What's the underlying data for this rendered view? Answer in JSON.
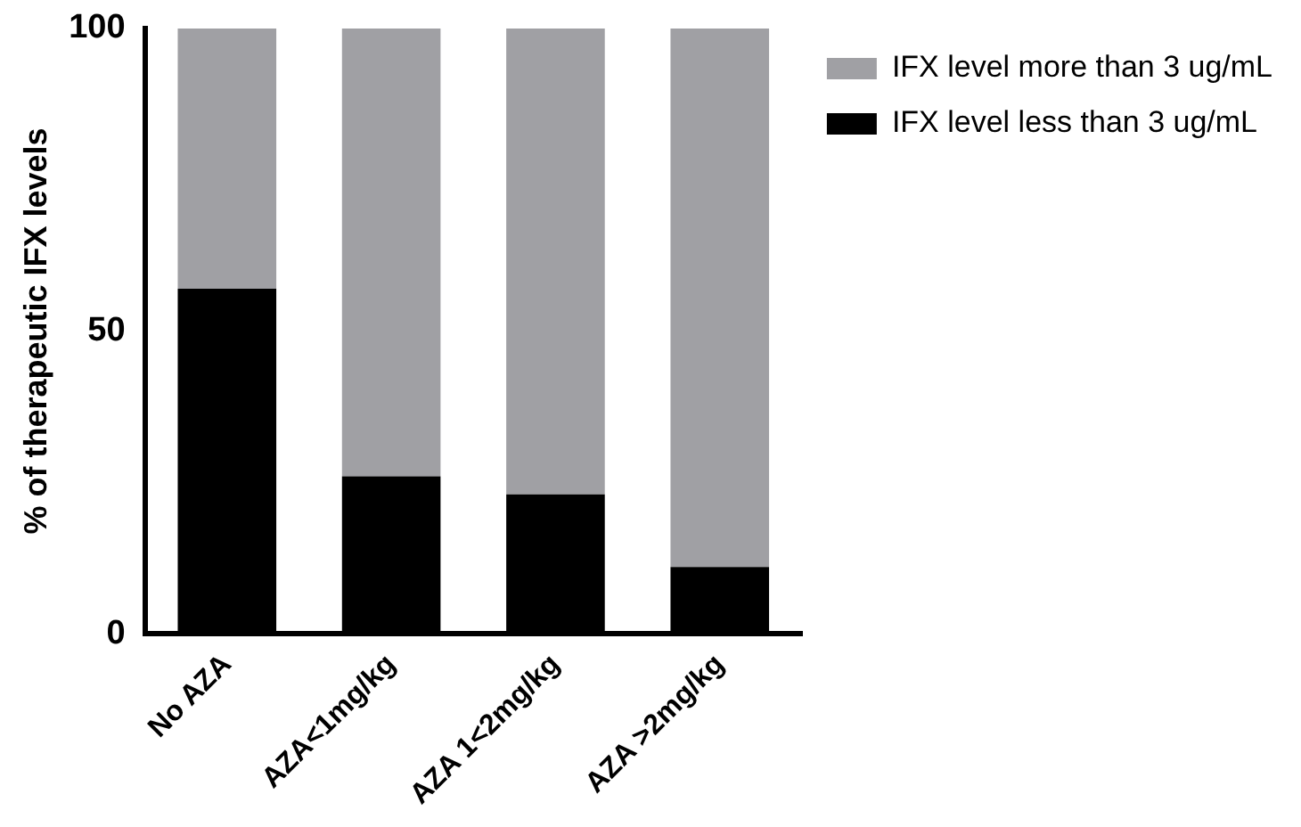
{
  "chart_data": {
    "type": "bar",
    "ylabel": "% of therapeutic IFX levels",
    "categories": [
      "No AZA",
      "AZA<1mg/kg",
      "AZA 1<2mg/kg",
      "AZA >2mg/kg"
    ],
    "series": [
      {
        "name": "IFX level less than 3 ug/mL",
        "color": "#000000",
        "values": [
          57,
          26,
          23,
          11
        ]
      },
      {
        "name": "IFX level more than 3 ug/mL",
        "color": "#a0a0a4",
        "values": [
          43,
          74,
          77,
          89
        ]
      }
    ],
    "stacked": true,
    "ylim": [
      0,
      100
    ],
    "yticks": [
      0,
      50,
      100
    ],
    "grid": false,
    "legend": "top right"
  }
}
